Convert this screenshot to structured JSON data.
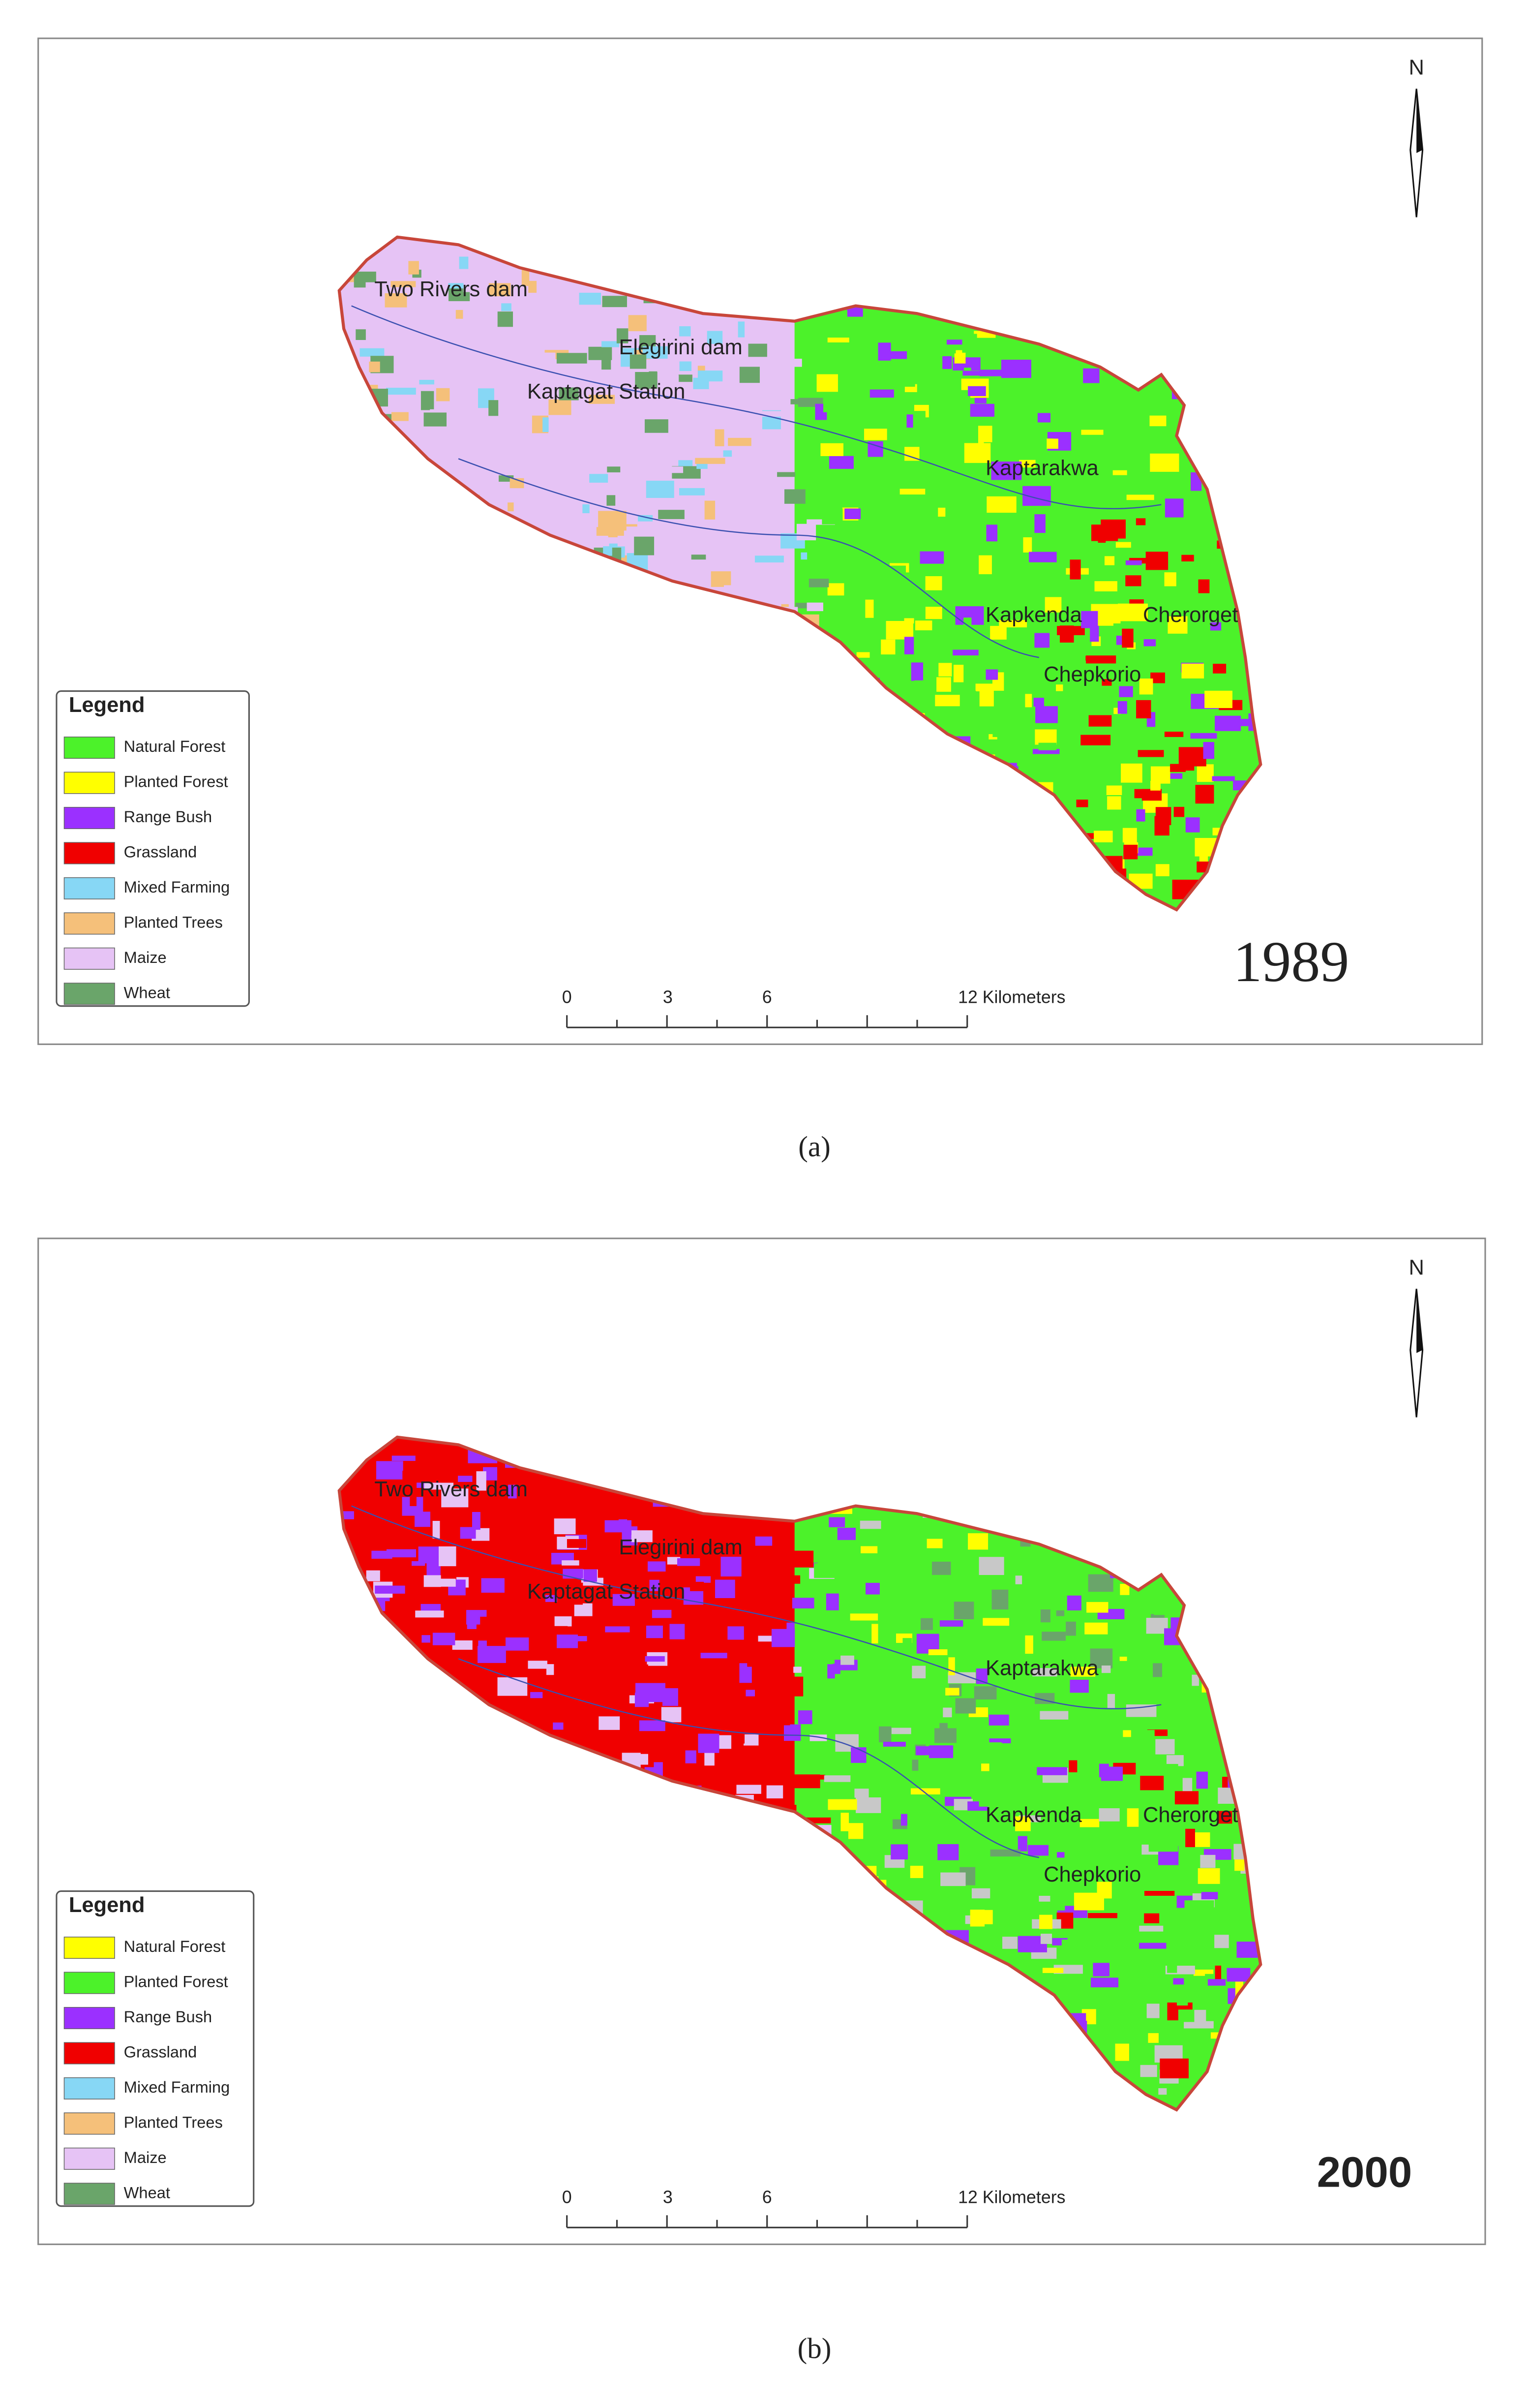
{
  "panels": [
    {
      "year": "1989",
      "caption": "(a)",
      "north": "N",
      "places": [
        "Two Rivers dam",
        "Elegirini dam",
        "Kaptagat Station",
        "Kaptarakwa",
        "Kapkenda",
        "Cherorget",
        "Chepkorio"
      ],
      "legend": {
        "title": "Legend",
        "items": [
          {
            "label": "Natural Forest",
            "color": "#4cf22a"
          },
          {
            "label": "Planted Forest",
            "color": "#ffff00"
          },
          {
            "label": "Range Bush",
            "color": "#9b30ff"
          },
          {
            "label": "Grassland",
            "color": "#f00000"
          },
          {
            "label": "Mixed Farming",
            "color": "#87d7f5"
          },
          {
            "label": "Planted Trees",
            "color": "#f5c07a"
          },
          {
            "label": "Maize",
            "color": "#e6c3f5"
          },
          {
            "label": "Wheat",
            "color": "#6aa56a"
          }
        ]
      },
      "scale": [
        "0",
        "3",
        "6",
        "12 Kilometers"
      ]
    },
    {
      "year": "2000",
      "caption": "(b)",
      "north": "N",
      "places": [
        "Two Rivers dam",
        "Elegirini dam",
        "Kaptagat Station",
        "Kaptarakwa",
        "Kapkenda",
        "Cherorget",
        "Chepkorio"
      ],
      "legend": {
        "title": "Legend",
        "items": [
          {
            "label": "Natural Forest",
            "color": "#ffff00"
          },
          {
            "label": "Planted Forest",
            "color": "#4cf22a"
          },
          {
            "label": "Range Bush",
            "color": "#9b30ff"
          },
          {
            "label": "Grassland",
            "color": "#f00000"
          },
          {
            "label": "Mixed Farming",
            "color": "#87d7f5"
          },
          {
            "label": "Planted Trees",
            "color": "#f5c07a"
          },
          {
            "label": "Maize",
            "color": "#e6c3f5"
          },
          {
            "label": "Wheat",
            "color": "#6aa56a"
          }
        ]
      },
      "scale": [
        "0",
        "3",
        "6",
        "12 Kilometers"
      ]
    }
  ]
}
